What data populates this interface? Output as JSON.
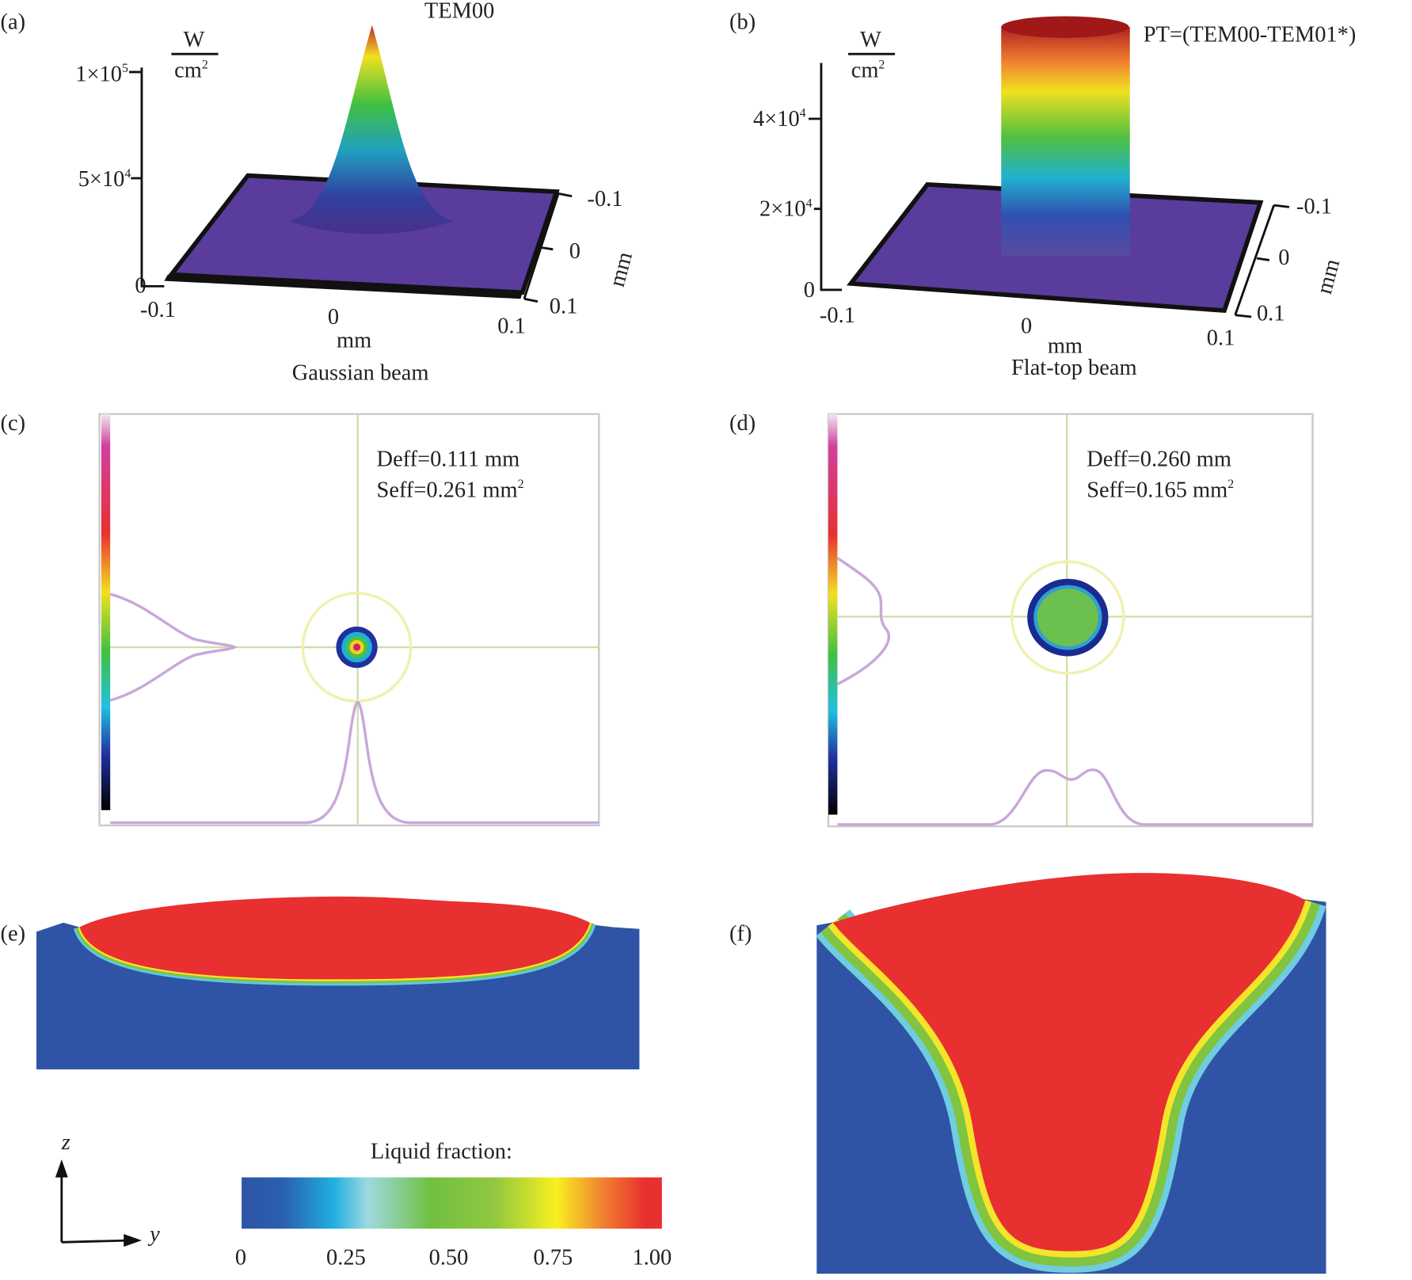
{
  "panels": {
    "a": {
      "label": "(a)",
      "title": "TEM00",
      "unit": {
        "num": "W",
        "den": "cm",
        "exp": "2"
      },
      "z_ticks": [
        {
          "mantissa": "1×10",
          "exp": "5"
        },
        {
          "mantissa": "5×10",
          "exp": "4"
        }
      ],
      "z_zero": "0",
      "x_ticks": [
        "-0.1",
        "0",
        "0.1"
      ],
      "x_label": "mm",
      "y_ticks": [
        "-0.1",
        "0",
        "0.1"
      ],
      "y_label": "mm",
      "caption": "Gaussian beam"
    },
    "b": {
      "label": "(b)",
      "title": "PT=(TEM00-TEM01*)",
      "unit": {
        "num": "W",
        "den": "cm",
        "exp": "2"
      },
      "z_ticks": [
        {
          "mantissa": "4×10",
          "exp": "4"
        },
        {
          "mantissa": "2×10",
          "exp": "4"
        }
      ],
      "z_zero": "0",
      "x_ticks": [
        "-0.1",
        "0",
        "0.1"
      ],
      "x_label": "mm",
      "y_ticks": [
        "-0.1",
        "0",
        "0.1"
      ],
      "y_label": "mm",
      "caption": "Flat-top beam"
    },
    "c": {
      "label": "(c)",
      "deff": "Deff=0.111 mm",
      "seff": "Seff=0.261 mm",
      "seff_exp": "2"
    },
    "d": {
      "label": "(d)",
      "deff": "Deff=0.260 mm",
      "seff": "Seff=0.165 mm",
      "seff_exp": "2"
    },
    "e": {
      "label": "(e)"
    },
    "f": {
      "label": "(f)"
    }
  },
  "legend": {
    "title": "Liquid fraction:",
    "ticks": [
      "0",
      "0.25",
      "0.50",
      "0.75",
      "1.00"
    ],
    "axes": {
      "z": "z",
      "y": "y"
    }
  }
}
